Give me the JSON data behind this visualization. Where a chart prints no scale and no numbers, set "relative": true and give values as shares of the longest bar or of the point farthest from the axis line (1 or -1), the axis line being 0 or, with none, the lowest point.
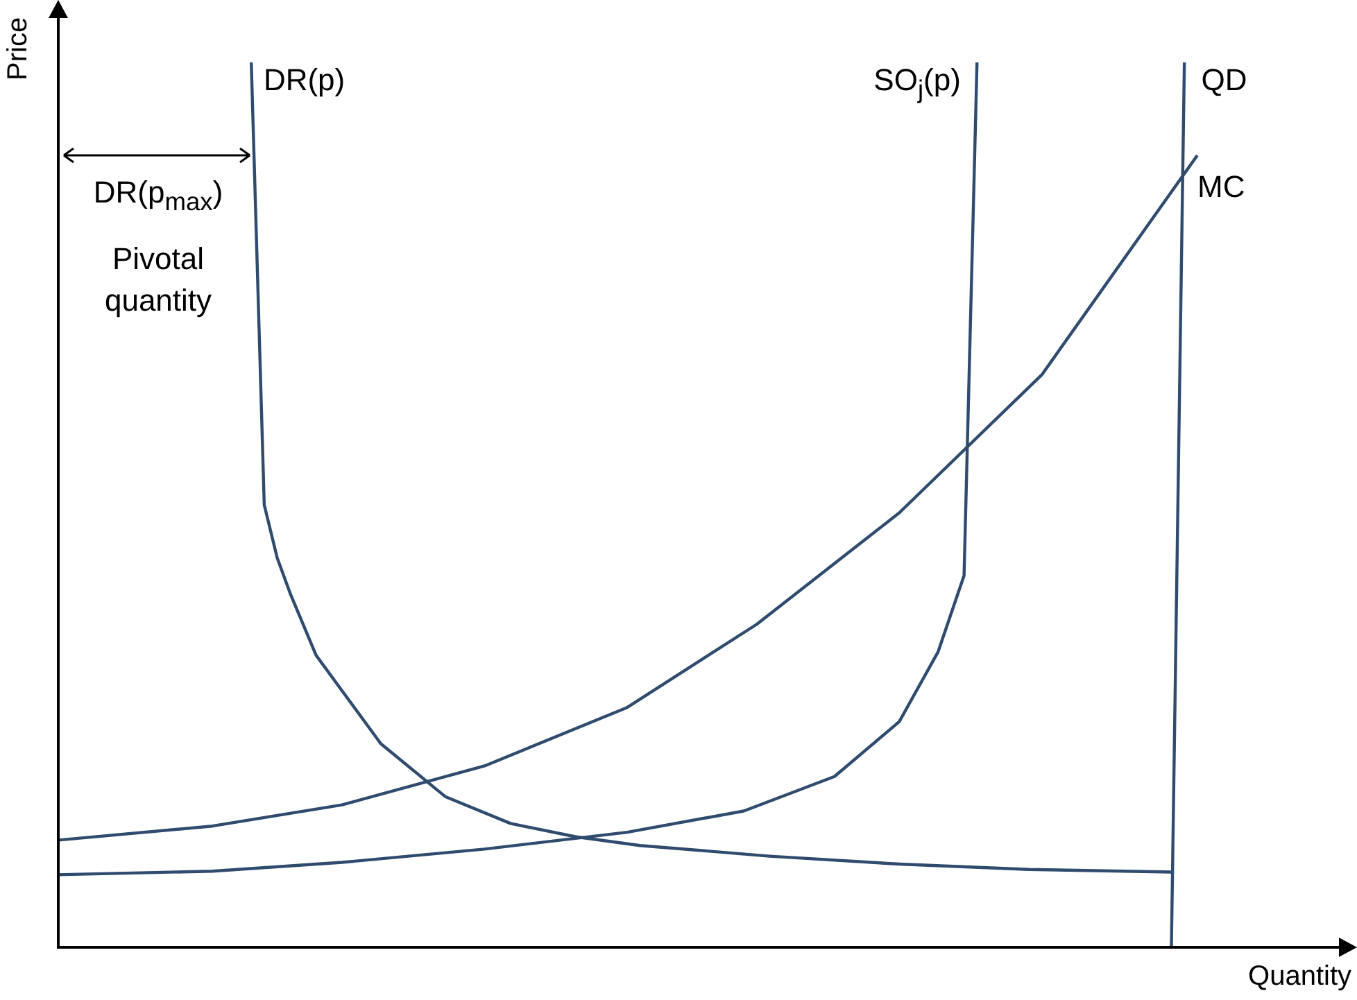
{
  "chart_data": {
    "type": "line",
    "relative": true,
    "marker": "none",
    "line_style": "solid",
    "xlabel": "Quantity",
    "ylabel": "Price",
    "annotations": [
      "DR(p$_{max}$)",
      "Pivotal quantity"
    ],
    "categories": [
      null,
      null,
      null,
      null,
      null,
      null,
      null,
      null,
      null,
      null,
      null,
      null,
      null,
      null,
      null,
      null,
      null,
      null,
      null,
      null,
      null,
      null,
      null,
      null,
      null,
      null,
      null,
      null,
      null,
      null,
      null,
      null,
      null,
      null,
      null,
      null,
      null,
      null,
      null,
      null,
      null,
      null,
      null,
      null,
      null,
      null,
      null,
      null,
      null,
      null,
      null,
      null,
      null,
      null,
      null,
      null,
      null,
      null,
      null,
      null,
      null,
      null,
      null,
      null,
      null,
      null,
      null,
      null,
      null,
      null,
      null,
      null,
      null,
      null,
      null,
      null,
      null,
      null,
      null,
      null,
      null,
      null,
      null,
      null,
      null,
      null,
      null,
      null,
      null,
      null,
      null,
      null,
      null,
      null,
      null,
      null,
      null,
      null,
      null,
      null,
      null
    ],
    "series": [
      {
        "name": "DR(p)",
        "color": "#2f4b6e",
        "values": [
          null,
          null,
          null,
          null,
          null,
          null,
          null,
          null,
          null,
          null,
          null,
          null,
          null,
          null,
          null,
          1,
          0.5,
          0.44,
          0.4,
          null,
          0.33,
          null,
          0.29,
          null,
          null,
          0.23,
          null,
          null,
          null,
          null,
          0.17,
          null,
          null,
          null,
          null,
          0.14,
          null,
          null,
          null,
          null,
          0.125,
          null,
          null,
          null,
          null,
          0.115,
          null,
          null,
          null,
          null,
          null,
          null,
          null,
          null,
          null,
          0.103,
          null,
          null,
          null,
          null,
          null,
          null,
          null,
          null,
          null,
          0.094,
          null,
          null,
          null,
          null,
          null,
          null,
          null,
          null,
          null,
          0.088,
          null,
          null,
          null,
          null,
          null,
          null,
          null,
          null,
          null,
          null,
          0.085,
          null,
          null,
          null,
          null,
          null,
          null,
          null,
          null,
          null,
          null,
          null,
          null,
          null,
          null
        ]
      },
      {
        "name": "SO$_{j}$(p)",
        "color": "#2f4b6e",
        "values": [
          0.082,
          null,
          null,
          null,
          null,
          null,
          null,
          null,
          null,
          null,
          null,
          null,
          0.086,
          null,
          null,
          null,
          null,
          null,
          null,
          null,
          null,
          null,
          0.096,
          null,
          null,
          null,
          null,
          null,
          null,
          null,
          null,
          null,
          null,
          0.111,
          null,
          null,
          null,
          null,
          null,
          null,
          null,
          null,
          null,
          null,
          0.13,
          null,
          null,
          null,
          null,
          null,
          null,
          null,
          null,
          0.154,
          null,
          null,
          null,
          null,
          null,
          null,
          0.193,
          null,
          null,
          null,
          null,
          0.255,
          null,
          null,
          0.334,
          null,
          0.42,
          1,
          null,
          null,
          null,
          null,
          null,
          null,
          null,
          null,
          null,
          null,
          null,
          null,
          null,
          null,
          null,
          null,
          null,
          null,
          null,
          null,
          null,
          null,
          null,
          null,
          null,
          null,
          null,
          null,
          null
        ]
      },
      {
        "name": "QD",
        "color": "#2f4b6e",
        "values": [
          null,
          null,
          null,
          null,
          null,
          null,
          null,
          null,
          null,
          null,
          null,
          null,
          null,
          null,
          null,
          null,
          null,
          null,
          null,
          null,
          null,
          null,
          null,
          null,
          null,
          null,
          null,
          null,
          null,
          null,
          null,
          null,
          null,
          null,
          null,
          null,
          null,
          null,
          null,
          null,
          null,
          null,
          null,
          null,
          null,
          null,
          null,
          null,
          null,
          null,
          null,
          null,
          null,
          null,
          null,
          null,
          null,
          null,
          null,
          null,
          null,
          null,
          null,
          null,
          null,
          null,
          null,
          null,
          null,
          null,
          null,
          null,
          null,
          null,
          null,
          null,
          null,
          null,
          null,
          null,
          null,
          null,
          null,
          null,
          null,
          null,
          0,
          1,
          null,
          null,
          null,
          null,
          null,
          null,
          null,
          null,
          null,
          null,
          null,
          null,
          null
        ]
      },
      {
        "name": "MC",
        "color": "#2f4b6e",
        "values": [
          0.121,
          null,
          null,
          null,
          null,
          null,
          null,
          null,
          null,
          null,
          null,
          null,
          0.137,
          null,
          null,
          null,
          null,
          null,
          null,
          null,
          null,
          null,
          0.161,
          null,
          null,
          null,
          null,
          null,
          null,
          null,
          null,
          null,
          null,
          0.205,
          null,
          null,
          null,
          null,
          null,
          null,
          null,
          null,
          null,
          null,
          0.271,
          null,
          null,
          null,
          null,
          null,
          null,
          null,
          null,
          null,
          0.365,
          null,
          null,
          null,
          null,
          null,
          null,
          null,
          null,
          null,
          null,
          0.491,
          null,
          null,
          null,
          null,
          null,
          null,
          null,
          null,
          null,
          null,
          0.647,
          null,
          null,
          null,
          null,
          null,
          null,
          null,
          null,
          null,
          null,
          null,
          0.895,
          null,
          null,
          null,
          null,
          null,
          null,
          null,
          null,
          null,
          null,
          null,
          null
        ]
      }
    ]
  }
}
